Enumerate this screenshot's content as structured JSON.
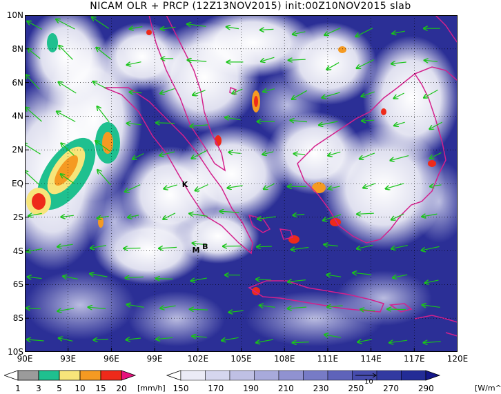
{
  "title": "NICAM OLR + PRCP (12Z13NOV2015) init:00Z10NOV2015 slab",
  "map": {
    "lat_labels": [
      "10N",
      "8N",
      "6N",
      "4N",
      "2N",
      "EQ",
      "2S",
      "4S",
      "6S",
      "8S",
      "10S"
    ],
    "lon_labels": [
      "90E",
      "93E",
      "96E",
      "99E",
      "102E",
      "105E",
      "108E",
      "111E",
      "114E",
      "117E",
      "120E"
    ],
    "lat_range": [
      -10,
      10
    ],
    "lon_range": [
      90,
      120
    ],
    "station_markers": [
      {
        "label": "K",
        "lon": 100.9,
        "lat": -0.2
      },
      {
        "label": "M",
        "lon": 101.6,
        "lat": -4.1
      },
      {
        "label": "B",
        "lon": 102.3,
        "lat": -3.9
      }
    ],
    "colors": {
      "ocean_blue": "#2b2f96",
      "cloud_white": "#ffffff",
      "coastline": "#d4208c",
      "wind_vector": "#19c419",
      "grid": "#000000"
    }
  },
  "precip_colorbar": {
    "labels": [
      "1",
      "3",
      "5",
      "10",
      "15",
      "20"
    ],
    "unit": "[mm/h]",
    "colors": [
      "#ffffff",
      "#9b9b9b",
      "#1fc08f",
      "#f7e57a",
      "#f59a22",
      "#ee2a1a",
      "#e6127d"
    ]
  },
  "olr_colorbar": {
    "labels": [
      "150",
      "170",
      "190",
      "210",
      "230",
      "250",
      "270",
      "290"
    ],
    "unit": "[W/m^2]",
    "vector_ref_label": "10",
    "colors": [
      "#ffffff",
      "#ebebf6",
      "#d5d6ee",
      "#bfc0e4",
      "#a8aadb",
      "#9092d1",
      "#777bc6",
      "#5e63ba",
      "#464cad",
      "#323aa1",
      "#232c96",
      "#14178a"
    ]
  }
}
